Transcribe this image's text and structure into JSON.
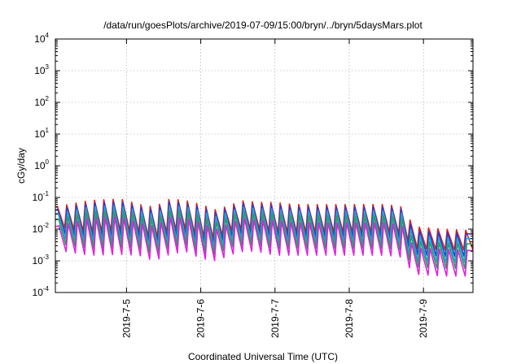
{
  "chart_data": {
    "type": "line",
    "title": "/data/run/goesPlots/archive/2019-07-09/15:00/bryn/../bryn/5daysMars.plot",
    "xlabel": "Coordinated Universal Time (UTC)",
    "ylabel": "cGy/day",
    "yscale": "log",
    "ylim": [
      0.0001,
      10000
    ],
    "yticks": [
      {
        "base": "10",
        "exp": "-4",
        "value": 0.0001
      },
      {
        "base": "10",
        "exp": "-3",
        "value": 0.001
      },
      {
        "base": "10",
        "exp": "-2",
        "value": 0.01
      },
      {
        "base": "10",
        "exp": "-1",
        "value": 0.1
      },
      {
        "base": "10",
        "exp": "0",
        "value": 1
      },
      {
        "base": "10",
        "exp": "1",
        "value": 10
      },
      {
        "base": "10",
        "exp": "2",
        "value": 100
      },
      {
        "base": "10",
        "exp": "3",
        "value": 1000
      },
      {
        "base": "10",
        "exp": "4",
        "value": 10000
      }
    ],
    "xlim": [
      "2019-07-04T01:00",
      "2019-07-09T16:00"
    ],
    "xticks": [
      {
        "label": "2019-7-5",
        "value": "2019-07-05T00:00"
      },
      {
        "label": "2019-7-6",
        "value": "2019-07-06T00:00"
      },
      {
        "label": "2019-7-7",
        "value": "2019-07-07T00:00"
      },
      {
        "label": "2019-7-8",
        "value": "2019-07-08T00:00"
      },
      {
        "label": "2019-7-9",
        "value": "2019-07-09T00:00"
      }
    ],
    "grid": true,
    "legend": "none",
    "sawtooth_period_hours": 3,
    "series": [
      {
        "color": "#e0201c",
        "peak": [
          [
            "2019-07-04T01:00",
            0.05
          ],
          [
            "2019-07-04T12:00",
            0.08
          ],
          [
            "2019-07-04T22:00",
            0.09
          ],
          [
            "2019-07-05T04:00",
            0.06
          ],
          [
            "2019-07-05T09:00",
            0.05
          ],
          [
            "2019-07-05T14:00",
            0.09
          ],
          [
            "2019-07-05T19:00",
            0.08
          ],
          [
            "2019-07-06T00:00",
            0.06
          ],
          [
            "2019-07-06T05:00",
            0.04
          ],
          [
            "2019-07-06T10:00",
            0.06
          ],
          [
            "2019-07-06T14:00",
            0.08
          ],
          [
            "2019-07-06T18:00",
            0.07
          ],
          [
            "2019-07-07T00:00",
            0.07
          ],
          [
            "2019-07-07T06:00",
            0.06
          ],
          [
            "2019-07-07T12:00",
            0.06
          ],
          [
            "2019-07-07T18:00",
            0.06
          ],
          [
            "2019-07-08T00:00",
            0.06
          ],
          [
            "2019-07-08T06:00",
            0.06
          ],
          [
            "2019-07-08T12:00",
            0.06
          ],
          [
            "2019-07-08T17:00",
            0.05
          ],
          [
            "2019-07-08T21:00",
            0.012
          ],
          [
            "2019-07-09T06:00",
            0.01
          ],
          [
            "2019-07-09T16:00",
            0.009
          ]
        ],
        "trough": [
          [
            "2019-07-04T01:00",
            0.012
          ],
          [
            "2019-07-04T12:00",
            0.008
          ],
          [
            "2019-07-04T22:00",
            0.009
          ],
          [
            "2019-07-05T04:00",
            0.008
          ],
          [
            "2019-07-05T09:00",
            0.005
          ],
          [
            "2019-07-05T14:00",
            0.009
          ],
          [
            "2019-07-05T19:00",
            0.01
          ],
          [
            "2019-07-06T00:00",
            0.006
          ],
          [
            "2019-07-06T05:00",
            0.005
          ],
          [
            "2019-07-06T10:00",
            0.009
          ],
          [
            "2019-07-06T14:00",
            0.01
          ],
          [
            "2019-07-06T18:00",
            0.01
          ],
          [
            "2019-07-07T00:00",
            0.008
          ],
          [
            "2019-07-07T06:00",
            0.008
          ],
          [
            "2019-07-07T12:00",
            0.008
          ],
          [
            "2019-07-07T18:00",
            0.008
          ],
          [
            "2019-07-08T00:00",
            0.008
          ],
          [
            "2019-07-08T06:00",
            0.008
          ],
          [
            "2019-07-08T12:00",
            0.008
          ],
          [
            "2019-07-08T17:00",
            0.007
          ],
          [
            "2019-07-08T21:00",
            0.0025
          ],
          [
            "2019-07-09T06:00",
            0.0022
          ],
          [
            "2019-07-09T16:00",
            0.0022
          ]
        ]
      },
      {
        "color": "#1f3fd8",
        "peak": [
          [
            "2019-07-04T01:00",
            0.04
          ],
          [
            "2019-07-04T12:00",
            0.065
          ],
          [
            "2019-07-04T22:00",
            0.075
          ],
          [
            "2019-07-05T04:00",
            0.05
          ],
          [
            "2019-07-05T09:00",
            0.04
          ],
          [
            "2019-07-05T14:00",
            0.075
          ],
          [
            "2019-07-05T19:00",
            0.065
          ],
          [
            "2019-07-06T00:00",
            0.05
          ],
          [
            "2019-07-06T05:00",
            0.033
          ],
          [
            "2019-07-06T10:00",
            0.05
          ],
          [
            "2019-07-06T14:00",
            0.065
          ],
          [
            "2019-07-06T18:00",
            0.058
          ],
          [
            "2019-07-07T00:00",
            0.058
          ],
          [
            "2019-07-07T06:00",
            0.05
          ],
          [
            "2019-07-07T12:00",
            0.05
          ],
          [
            "2019-07-07T18:00",
            0.05
          ],
          [
            "2019-07-08T00:00",
            0.05
          ],
          [
            "2019-07-08T06:00",
            0.05
          ],
          [
            "2019-07-08T12:00",
            0.05
          ],
          [
            "2019-07-08T17:00",
            0.042
          ],
          [
            "2019-07-08T21:00",
            0.009
          ],
          [
            "2019-07-09T06:00",
            0.0078
          ],
          [
            "2019-07-09T16:00",
            0.007
          ]
        ],
        "trough": [
          [
            "2019-07-04T01:00",
            0.008
          ],
          [
            "2019-07-04T12:00",
            0.0055
          ],
          [
            "2019-07-04T22:00",
            0.006
          ],
          [
            "2019-07-05T04:00",
            0.0055
          ],
          [
            "2019-07-05T09:00",
            0.0035
          ],
          [
            "2019-07-05T14:00",
            0.006
          ],
          [
            "2019-07-05T19:00",
            0.007
          ],
          [
            "2019-07-06T00:00",
            0.004
          ],
          [
            "2019-07-06T05:00",
            0.0035
          ],
          [
            "2019-07-06T10:00",
            0.006
          ],
          [
            "2019-07-06T14:00",
            0.007
          ],
          [
            "2019-07-06T18:00",
            0.007
          ],
          [
            "2019-07-07T00:00",
            0.0055
          ],
          [
            "2019-07-07T06:00",
            0.0055
          ],
          [
            "2019-07-07T12:00",
            0.0055
          ],
          [
            "2019-07-07T18:00",
            0.0055
          ],
          [
            "2019-07-08T00:00",
            0.0055
          ],
          [
            "2019-07-08T06:00",
            0.0055
          ],
          [
            "2019-07-08T12:00",
            0.0055
          ],
          [
            "2019-07-08T17:00",
            0.005
          ],
          [
            "2019-07-08T21:00",
            0.0016
          ],
          [
            "2019-07-09T06:00",
            0.0014
          ],
          [
            "2019-07-09T16:00",
            0.0014
          ]
        ]
      },
      {
        "color": "#1aa8e0",
        "peak": [
          [
            "2019-07-04T01:00",
            0.03
          ],
          [
            "2019-07-04T12:00",
            0.05
          ],
          [
            "2019-07-04T22:00",
            0.055
          ],
          [
            "2019-07-05T04:00",
            0.038
          ],
          [
            "2019-07-05T09:00",
            0.03
          ],
          [
            "2019-07-05T14:00",
            0.055
          ],
          [
            "2019-07-05T19:00",
            0.05
          ],
          [
            "2019-07-06T00:00",
            0.038
          ],
          [
            "2019-07-06T05:00",
            0.025
          ],
          [
            "2019-07-06T10:00",
            0.038
          ],
          [
            "2019-07-06T14:00",
            0.05
          ],
          [
            "2019-07-06T18:00",
            0.044
          ],
          [
            "2019-07-07T00:00",
            0.044
          ],
          [
            "2019-07-07T06:00",
            0.038
          ],
          [
            "2019-07-07T12:00",
            0.038
          ],
          [
            "2019-07-07T18:00",
            0.038
          ],
          [
            "2019-07-08T00:00",
            0.038
          ],
          [
            "2019-07-08T06:00",
            0.038
          ],
          [
            "2019-07-08T12:00",
            0.038
          ],
          [
            "2019-07-08T17:00",
            0.032
          ],
          [
            "2019-07-08T21:00",
            0.0062
          ],
          [
            "2019-07-09T06:00",
            0.0055
          ],
          [
            "2019-07-09T16:00",
            0.005
          ]
        ],
        "trough": [
          [
            "2019-07-04T01:00",
            0.0055
          ],
          [
            "2019-07-04T12:00",
            0.0038
          ],
          [
            "2019-07-04T22:00",
            0.004
          ],
          [
            "2019-07-05T04:00",
            0.0038
          ],
          [
            "2019-07-05T09:00",
            0.0024
          ],
          [
            "2019-07-05T14:00",
            0.004
          ],
          [
            "2019-07-05T19:00",
            0.0048
          ],
          [
            "2019-07-06T00:00",
            0.0028
          ],
          [
            "2019-07-06T05:00",
            0.0024
          ],
          [
            "2019-07-06T10:00",
            0.004
          ],
          [
            "2019-07-06T14:00",
            0.0048
          ],
          [
            "2019-07-06T18:00",
            0.0048
          ],
          [
            "2019-07-07T00:00",
            0.0038
          ],
          [
            "2019-07-07T06:00",
            0.0038
          ],
          [
            "2019-07-07T12:00",
            0.0038
          ],
          [
            "2019-07-07T18:00",
            0.0038
          ],
          [
            "2019-07-08T00:00",
            0.0038
          ],
          [
            "2019-07-08T06:00",
            0.0038
          ],
          [
            "2019-07-08T12:00",
            0.0038
          ],
          [
            "2019-07-08T17:00",
            0.0034
          ],
          [
            "2019-07-08T21:00",
            0.001
          ],
          [
            "2019-07-09T06:00",
            0.0009
          ],
          [
            "2019-07-09T16:00",
            0.0009
          ]
        ]
      },
      {
        "color": "#2aa05a",
        "peak": [
          [
            "2019-07-04T01:00",
            0.02
          ],
          [
            "2019-07-04T12:00",
            0.035
          ],
          [
            "2019-07-04T22:00",
            0.038
          ],
          [
            "2019-07-05T04:00",
            0.026
          ],
          [
            "2019-07-05T09:00",
            0.02
          ],
          [
            "2019-07-05T14:00",
            0.038
          ],
          [
            "2019-07-05T19:00",
            0.035
          ],
          [
            "2019-07-06T00:00",
            0.026
          ],
          [
            "2019-07-06T05:00",
            0.017
          ],
          [
            "2019-07-06T10:00",
            0.026
          ],
          [
            "2019-07-06T14:00",
            0.035
          ],
          [
            "2019-07-06T18:00",
            0.03
          ],
          [
            "2019-07-07T00:00",
            0.03
          ],
          [
            "2019-07-07T06:00",
            0.026
          ],
          [
            "2019-07-07T12:00",
            0.026
          ],
          [
            "2019-07-07T18:00",
            0.026
          ],
          [
            "2019-07-08T00:00",
            0.026
          ],
          [
            "2019-07-08T06:00",
            0.026
          ],
          [
            "2019-07-08T12:00",
            0.026
          ],
          [
            "2019-07-08T17:00",
            0.022
          ],
          [
            "2019-07-08T21:00",
            0.0042
          ],
          [
            "2019-07-09T06:00",
            0.0037
          ],
          [
            "2019-07-09T16:00",
            0.0034
          ]
        ],
        "trough": [
          [
            "2019-07-04T01:00",
            0.0036
          ],
          [
            "2019-07-04T12:00",
            0.0025
          ],
          [
            "2019-07-04T22:00",
            0.0027
          ],
          [
            "2019-07-05T04:00",
            0.0025
          ],
          [
            "2019-07-05T09:00",
            0.0016
          ],
          [
            "2019-07-05T14:00",
            0.0027
          ],
          [
            "2019-07-05T19:00",
            0.0032
          ],
          [
            "2019-07-06T00:00",
            0.0019
          ],
          [
            "2019-07-06T05:00",
            0.0016
          ],
          [
            "2019-07-06T10:00",
            0.0027
          ],
          [
            "2019-07-06T14:00",
            0.0032
          ],
          [
            "2019-07-06T18:00",
            0.0032
          ],
          [
            "2019-07-07T00:00",
            0.0025
          ],
          [
            "2019-07-07T06:00",
            0.0025
          ],
          [
            "2019-07-07T12:00",
            0.0025
          ],
          [
            "2019-07-07T18:00",
            0.0025
          ],
          [
            "2019-07-08T00:00",
            0.0025
          ],
          [
            "2019-07-08T06:00",
            0.0025
          ],
          [
            "2019-07-08T12:00",
            0.0025
          ],
          [
            "2019-07-08T17:00",
            0.0022
          ],
          [
            "2019-07-08T21:00",
            0.00065
          ],
          [
            "2019-07-09T06:00",
            0.00058
          ],
          [
            "2019-07-09T16:00",
            0.00058
          ]
        ]
      },
      {
        "color": "#e020e0",
        "peak": [
          [
            "2019-07-04T01:00",
            0.012
          ],
          [
            "2019-07-04T12:00",
            0.022
          ],
          [
            "2019-07-04T22:00",
            0.024
          ],
          [
            "2019-07-05T04:00",
            0.016
          ],
          [
            "2019-07-05T09:00",
            0.012
          ],
          [
            "2019-07-05T14:00",
            0.024
          ],
          [
            "2019-07-05T19:00",
            0.022
          ],
          [
            "2019-07-06T00:00",
            0.016
          ],
          [
            "2019-07-06T05:00",
            0.01
          ],
          [
            "2019-07-06T10:00",
            0.016
          ],
          [
            "2019-07-06T14:00",
            0.022
          ],
          [
            "2019-07-06T18:00",
            0.019
          ],
          [
            "2019-07-07T00:00",
            0.019
          ],
          [
            "2019-07-07T06:00",
            0.016
          ],
          [
            "2019-07-07T12:00",
            0.016
          ],
          [
            "2019-07-07T18:00",
            0.016
          ],
          [
            "2019-07-08T00:00",
            0.016
          ],
          [
            "2019-07-08T06:00",
            0.016
          ],
          [
            "2019-07-08T12:00",
            0.016
          ],
          [
            "2019-07-08T17:00",
            0.013
          ],
          [
            "2019-07-08T21:00",
            0.0026
          ],
          [
            "2019-07-09T06:00",
            0.0023
          ],
          [
            "2019-07-09T16:00",
            0.0021
          ]
        ],
        "trough": [
          [
            "2019-07-04T01:00",
            0.0022
          ],
          [
            "2019-07-04T12:00",
            0.0015
          ],
          [
            "2019-07-04T22:00",
            0.0016
          ],
          [
            "2019-07-05T04:00",
            0.0015
          ],
          [
            "2019-07-05T09:00",
            0.001
          ],
          [
            "2019-07-05T14:00",
            0.0016
          ],
          [
            "2019-07-05T19:00",
            0.002
          ],
          [
            "2019-07-06T00:00",
            0.0012
          ],
          [
            "2019-07-06T05:00",
            0.001
          ],
          [
            "2019-07-06T10:00",
            0.0016
          ],
          [
            "2019-07-06T14:00",
            0.002
          ],
          [
            "2019-07-06T18:00",
            0.002
          ],
          [
            "2019-07-07T00:00",
            0.0015
          ],
          [
            "2019-07-07T06:00",
            0.0015
          ],
          [
            "2019-07-07T12:00",
            0.0015
          ],
          [
            "2019-07-07T18:00",
            0.0015
          ],
          [
            "2019-07-08T00:00",
            0.0015
          ],
          [
            "2019-07-08T06:00",
            0.0015
          ],
          [
            "2019-07-08T12:00",
            0.0015
          ],
          [
            "2019-07-08T17:00",
            0.0013
          ],
          [
            "2019-07-08T21:00",
            0.00038
          ],
          [
            "2019-07-09T06:00",
            0.00033
          ],
          [
            "2019-07-09T16:00",
            0.00033
          ]
        ]
      }
    ]
  }
}
